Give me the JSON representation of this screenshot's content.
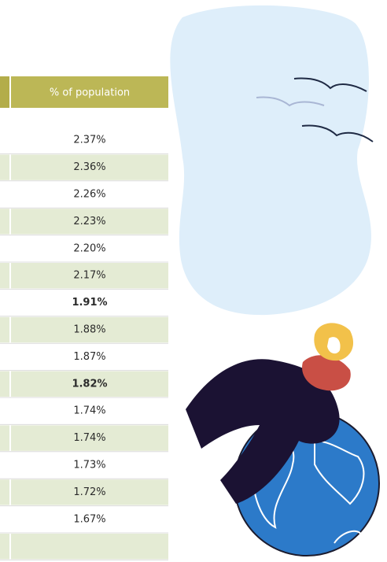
{
  "table": {
    "header": "% of population",
    "rows": [
      {
        "text": "2.37%",
        "bold": false
      },
      {
        "text": "2.36%",
        "bold": false
      },
      {
        "text": "2.26%",
        "bold": false
      },
      {
        "text": "2.23%",
        "bold": false
      },
      {
        "text": "2.20%",
        "bold": false
      },
      {
        "text": "2.17%",
        "bold": false
      },
      {
        "text": "1.91%",
        "bold": true
      },
      {
        "text": "1.88%",
        "bold": false
      },
      {
        "text": "1.87%",
        "bold": false
      },
      {
        "text": "1.82%",
        "bold": true
      },
      {
        "text": "1.74%",
        "bold": false
      },
      {
        "text": "1.74%",
        "bold": false
      },
      {
        "text": "1.73%",
        "bold": false
      },
      {
        "text": "1.72%",
        "bold": false
      },
      {
        "text": "1.67%",
        "bold": false
      }
    ]
  }
}
